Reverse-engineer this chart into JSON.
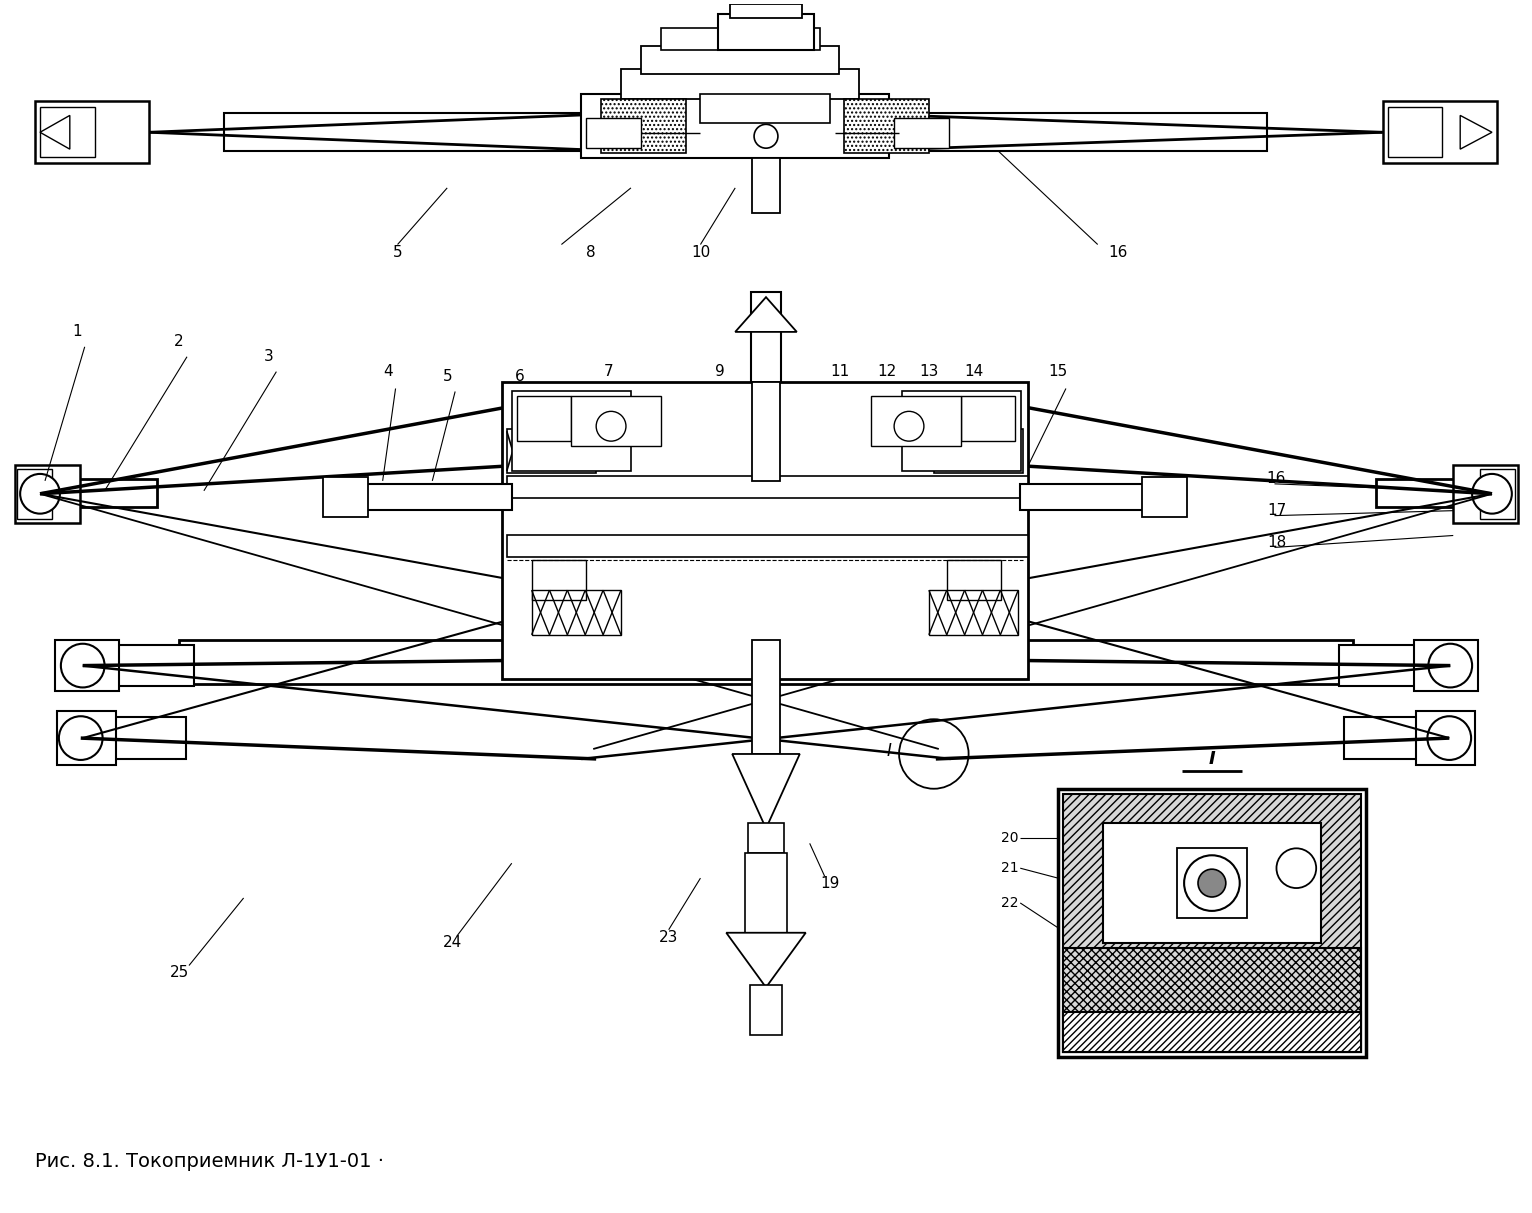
{
  "bg_color": "#ffffff",
  "line_color": "#000000",
  "figsize": [
    15.32,
    12.13
  ],
  "dpi": 100,
  "caption": "Рис. 8.1. Токоприемник Л-1У1-01 ·"
}
